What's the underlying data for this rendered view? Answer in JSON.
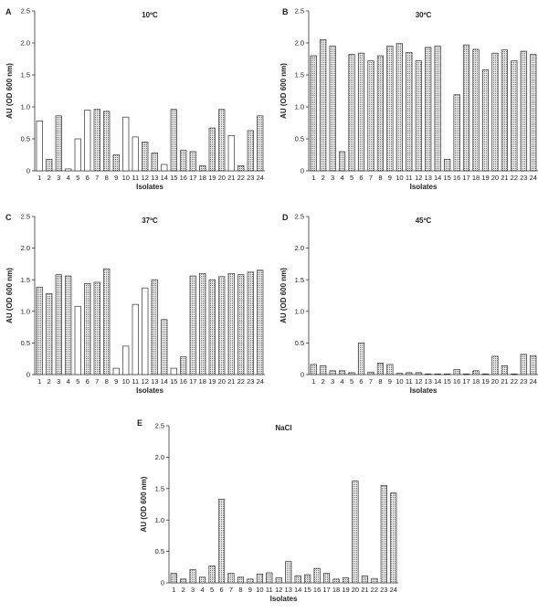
{
  "chart_data": [
    {
      "type": "bar",
      "panel": "A",
      "title": "10ºC",
      "xlabel": "Isolates",
      "ylabel": "AU (OD 600 nm)",
      "ylim": [
        0,
        2.5
      ],
      "yticks": [
        "0",
        "0.5",
        "1.0",
        "1.5",
        "2.0",
        "2.5"
      ],
      "categories": [
        "1",
        "2",
        "3",
        "4",
        "5",
        "6",
        "7",
        "8",
        "9",
        "10",
        "11",
        "12",
        "13",
        "14",
        "15",
        "16",
        "17",
        "18",
        "19",
        "20",
        "21",
        "22",
        "23",
        "24"
      ],
      "values": [
        0.78,
        0.18,
        0.86,
        0.03,
        0.5,
        0.95,
        0.96,
        0.93,
        0.25,
        0.84,
        0.53,
        0.45,
        0.28,
        0.1,
        0.96,
        0.32,
        0.3,
        0.08,
        0.67,
        0.96,
        0.55,
        0.08,
        0.63,
        0.86
      ],
      "patterns": [
        "w",
        "d",
        "d",
        "w",
        "w",
        "w",
        "d",
        "d",
        "d",
        "w",
        "w",
        "d",
        "d",
        "w",
        "d",
        "d",
        "d",
        "d",
        "d",
        "d",
        "w",
        "d",
        "d",
        "d"
      ]
    },
    {
      "type": "bar",
      "panel": "B",
      "title": "30ºC",
      "xlabel": "Isolates",
      "ylabel": "AU (OD 600 nm)",
      "ylim": [
        0,
        2.5
      ],
      "yticks": [
        "0",
        "0.5",
        "1.0",
        "1.5",
        "2.0",
        "2.5"
      ],
      "categories": [
        "1",
        "2",
        "3",
        "4",
        "5",
        "6",
        "7",
        "8",
        "9",
        "10",
        "11",
        "12",
        "13",
        "14",
        "15",
        "16",
        "17",
        "18",
        "19",
        "20",
        "21",
        "22",
        "23",
        "24"
      ],
      "values": [
        1.8,
        2.05,
        1.95,
        0.3,
        1.82,
        1.84,
        1.72,
        1.8,
        1.95,
        1.99,
        1.85,
        1.72,
        1.93,
        1.95,
        0.18,
        1.19,
        1.97,
        1.9,
        1.58,
        1.84,
        1.89,
        1.72,
        1.87,
        1.82
      ],
      "patterns": [
        "d",
        "d",
        "d",
        "d",
        "d",
        "d",
        "d",
        "d",
        "d",
        "d",
        "d",
        "d",
        "d",
        "d",
        "d",
        "d",
        "d",
        "d",
        "d",
        "d",
        "d",
        "d",
        "d",
        "d"
      ]
    },
    {
      "type": "bar",
      "panel": "C",
      "title": "37ºC",
      "xlabel": "Isolates",
      "ylabel": "AU (OD 600 nm)",
      "ylim": [
        0,
        2.5
      ],
      "yticks": [
        "0",
        "0.5",
        "1.0",
        "1.5",
        "2.0",
        "2.5"
      ],
      "categories": [
        "1",
        "2",
        "3",
        "4",
        "5",
        "6",
        "7",
        "8",
        "9",
        "10",
        "11",
        "12",
        "13",
        "14",
        "15",
        "16",
        "17",
        "18",
        "19",
        "20",
        "21",
        "22",
        "23",
        "24"
      ],
      "values": [
        1.38,
        1.28,
        1.58,
        1.56,
        1.08,
        1.44,
        1.46,
        1.67,
        0.1,
        0.45,
        1.11,
        1.37,
        1.5,
        0.87,
        0.1,
        0.28,
        1.56,
        1.6,
        1.5,
        1.55,
        1.6,
        1.58,
        1.62,
        1.65
      ],
      "patterns": [
        "d",
        "d",
        "d",
        "d",
        "w",
        "d",
        "d",
        "d",
        "w",
        "w",
        "w",
        "w",
        "d",
        "d",
        "w",
        "d",
        "d",
        "d",
        "d",
        "d",
        "d",
        "d",
        "d",
        "d"
      ]
    },
    {
      "type": "bar",
      "panel": "D",
      "title": "45ºC",
      "xlabel": "Isolates",
      "ylabel": "AU (OD 600 nm)",
      "ylim": [
        0,
        2.5
      ],
      "yticks": [
        "0",
        "0.5",
        "1.0",
        "1.5",
        "2.0",
        "2.5"
      ],
      "categories": [
        "1",
        "2",
        "3",
        "4",
        "5",
        "6",
        "7",
        "8",
        "9",
        "10",
        "11",
        "12",
        "13",
        "14",
        "15",
        "16",
        "17",
        "18",
        "19",
        "20",
        "21",
        "22",
        "23",
        "24"
      ],
      "values": [
        0.16,
        0.14,
        0.06,
        0.06,
        0.03,
        0.5,
        0.04,
        0.18,
        0.16,
        0.02,
        0.03,
        0.03,
        0.01,
        0.01,
        0.01,
        0.08,
        0.01,
        0.06,
        0.01,
        0.29,
        0.14,
        0.01,
        0.32,
        0.3
      ],
      "patterns": [
        "d",
        "d",
        "d",
        "d",
        "d",
        "d",
        "d",
        "d",
        "d",
        "d",
        "d",
        "d",
        "d",
        "d",
        "d",
        "d",
        "d",
        "d",
        "d",
        "d",
        "d",
        "d",
        "d",
        "d"
      ]
    },
    {
      "type": "bar",
      "panel": "E",
      "title": "NaCl",
      "xlabel": "Isolates",
      "ylabel": "AU (OD 600 nm)",
      "ylim": [
        0,
        2.5
      ],
      "yticks": [
        "0",
        "0.5",
        "1.0",
        "1.5",
        "2.0",
        "2.5"
      ],
      "categories": [
        "1",
        "2",
        "3",
        "4",
        "5",
        "6",
        "7",
        "8",
        "9",
        "10",
        "11",
        "12",
        "13",
        "14",
        "15",
        "16",
        "17",
        "18",
        "19",
        "20",
        "21",
        "22",
        "23",
        "24"
      ],
      "values": [
        0.15,
        0.06,
        0.21,
        0.09,
        0.27,
        1.33,
        0.15,
        0.09,
        0.06,
        0.14,
        0.16,
        0.08,
        0.34,
        0.11,
        0.13,
        0.23,
        0.15,
        0.06,
        0.08,
        1.62,
        0.11,
        0.07,
        1.55,
        1.43
      ],
      "patterns": [
        "d",
        "d",
        "d",
        "d",
        "d",
        "d",
        "d",
        "d",
        "d",
        "d",
        "d",
        "d",
        "d",
        "d",
        "d",
        "d",
        "d",
        "d",
        "d",
        "d",
        "d",
        "d",
        "d",
        "d"
      ]
    }
  ]
}
